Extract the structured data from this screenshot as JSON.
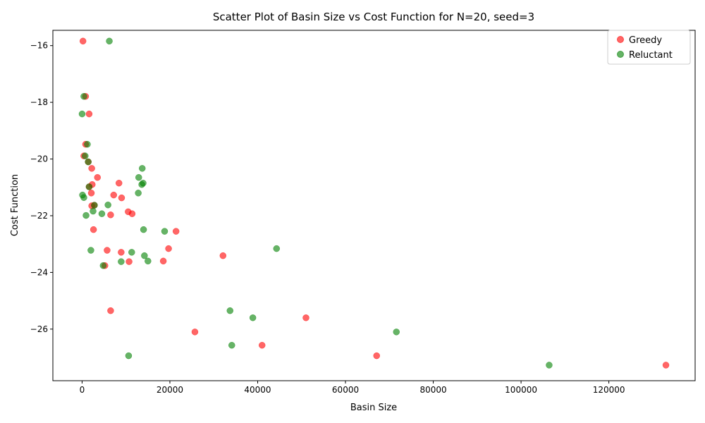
{
  "chart_data": {
    "type": "scatter",
    "title": "Scatter Plot of Basin Size vs Cost Function for N=20, seed=3",
    "xlabel": "Basin Size",
    "ylabel": "Cost Function",
    "xlim": [
      -6656,
      139656
    ],
    "ylim": [
      -27.82,
      -15.46
    ],
    "xticks": [
      0,
      20000,
      40000,
      60000,
      80000,
      100000,
      120000
    ],
    "xtick_labels": [
      "0",
      "20000",
      "40000",
      "60000",
      "80000",
      "100000",
      "120000"
    ],
    "yticks": [
      -16,
      -18,
      -20,
      -22,
      -24,
      -26
    ],
    "ytick_labels": [
      "−16",
      "−18",
      "−20",
      "−22",
      "−24",
      "−26"
    ],
    "grid": false,
    "legend_position": "top-right",
    "series": [
      {
        "name": "Greedy",
        "color": "#ff0000",
        "alpha": 0.6,
        "points": [
          [
            200,
            -15.84
          ],
          [
            800,
            -17.79
          ],
          [
            1600,
            -18.41
          ],
          [
            800,
            -19.48
          ],
          [
            400,
            -19.89
          ],
          [
            1400,
            -20.1
          ],
          [
            2200,
            -20.33
          ],
          [
            3500,
            -20.65
          ],
          [
            2300,
            -20.9
          ],
          [
            1600,
            -20.98
          ],
          [
            2100,
            -21.2
          ],
          [
            7200,
            -21.27
          ],
          [
            8400,
            -20.85
          ],
          [
            9000,
            -21.37
          ],
          [
            2200,
            -21.65
          ],
          [
            2800,
            -21.63
          ],
          [
            6500,
            -21.97
          ],
          [
            10500,
            -21.86
          ],
          [
            11400,
            -21.93
          ],
          [
            2600,
            -22.49
          ],
          [
            21400,
            -22.55
          ],
          [
            5700,
            -23.22
          ],
          [
            8900,
            -23.29
          ],
          [
            19700,
            -23.16
          ],
          [
            32100,
            -23.41
          ],
          [
            5200,
            -23.76
          ],
          [
            10700,
            -23.62
          ],
          [
            18500,
            -23.6
          ],
          [
            6500,
            -25.35
          ],
          [
            25700,
            -26.1
          ],
          [
            51000,
            -25.6
          ],
          [
            41000,
            -26.57
          ],
          [
            67100,
            -26.94
          ],
          [
            133000,
            -27.27
          ]
        ]
      },
      {
        "name": "Reluctant",
        "color": "#008000",
        "alpha": 0.6,
        "points": [
          [
            6200,
            -15.84
          ],
          [
            400,
            -17.79
          ],
          [
            0,
            -18.41
          ],
          [
            1200,
            -19.48
          ],
          [
            700,
            -19.89
          ],
          [
            1400,
            -20.1
          ],
          [
            13700,
            -20.33
          ],
          [
            12900,
            -20.65
          ],
          [
            13900,
            -20.85
          ],
          [
            13600,
            -20.9
          ],
          [
            1600,
            -20.98
          ],
          [
            12800,
            -21.2
          ],
          [
            100,
            -21.27
          ],
          [
            400,
            -21.36
          ],
          [
            5900,
            -21.62
          ],
          [
            2800,
            -21.63
          ],
          [
            2500,
            -21.84
          ],
          [
            4500,
            -21.93
          ],
          [
            900,
            -21.99
          ],
          [
            14000,
            -22.49
          ],
          [
            18800,
            -22.55
          ],
          [
            44300,
            -23.16
          ],
          [
            2000,
            -23.22
          ],
          [
            11300,
            -23.29
          ],
          [
            14200,
            -23.41
          ],
          [
            8900,
            -23.62
          ],
          [
            15000,
            -23.6
          ],
          [
            4800,
            -23.76
          ],
          [
            33700,
            -25.35
          ],
          [
            38900,
            -25.6
          ],
          [
            71600,
            -26.1
          ],
          [
            34100,
            -26.57
          ],
          [
            10600,
            -26.94
          ],
          [
            106400,
            -27.27
          ]
        ]
      }
    ]
  }
}
